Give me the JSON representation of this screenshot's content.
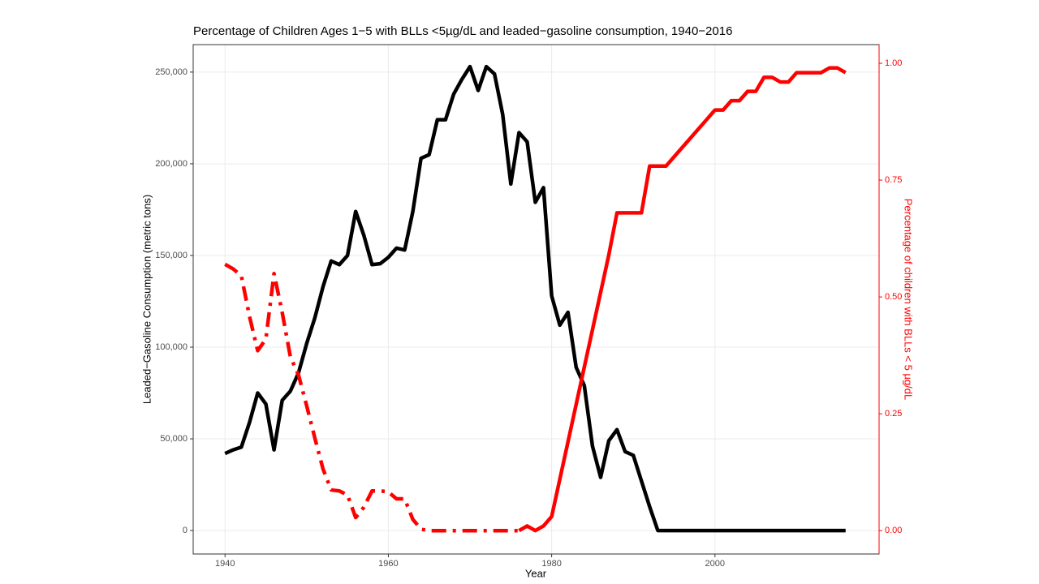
{
  "chart_data": {
    "type": "line",
    "title": "Percentage of Children Ages 1−5 with BLLs <5µg/dL and leaded−gasoline consumption, 1940−2016",
    "x_label": "Year",
    "y_label": "Leaded−Gasoline Consumption (metric tons)",
    "y2_label": "Percentage of children with BLLs < 5 µg/dL",
    "x": [
      1940,
      1941,
      1942,
      1943,
      1944,
      1945,
      1946,
      1947,
      1948,
      1949,
      1950,
      1951,
      1952,
      1953,
      1954,
      1955,
      1956,
      1957,
      1958,
      1959,
      1960,
      1961,
      1962,
      1963,
      1964,
      1965,
      1966,
      1967,
      1968,
      1969,
      1970,
      1971,
      1972,
      1973,
      1974,
      1975,
      1976,
      1977,
      1978,
      1979,
      1980,
      1981,
      1982,
      1983,
      1984,
      1985,
      1986,
      1987,
      1988,
      1989,
      1990,
      1991,
      1992,
      1993,
      1994,
      1995,
      1996,
      1997,
      1998,
      1999,
      2000,
      2001,
      2002,
      2003,
      2004,
      2005,
      2006,
      2007,
      2008,
      2009,
      2010,
      2011,
      2012,
      2013,
      2014,
      2015,
      2016
    ],
    "series": [
      {
        "color": "#000000",
        "axis": "y",
        "linestyle": "solid",
        "values": [
          42000,
          44000,
          45500,
          59000,
          75000,
          69000,
          44000,
          71000,
          76000,
          86000,
          102000,
          116000,
          133000,
          147000,
          145000,
          150000,
          174000,
          161000,
          145000,
          145500,
          149000,
          154000,
          153000,
          174000,
          203000,
          205000,
          224000,
          224000,
          238000,
          246000,
          253000,
          240000,
          253000,
          249000,
          227000,
          189000,
          217000,
          212000,
          179000,
          187000,
          128000,
          112000,
          119000,
          89000,
          79000,
          46000,
          29000,
          49000,
          55000,
          43000,
          41000,
          27000,
          13000,
          0,
          0,
          0,
          0,
          0,
          0,
          0,
          0,
          0,
          0,
          0,
          0,
          0,
          0,
          0,
          0,
          0,
          0,
          0,
          0,
          0,
          0,
          0,
          0
        ]
      },
      {
        "color": "#ff0000",
        "axis": "y2",
        "linestyle": "dashdot",
        "values": [
          0.57,
          0.56,
          0.545,
          0.458,
          0.385,
          0.41,
          0.55,
          0.467,
          0.372,
          0.333,
          0.267,
          0.198,
          0.132,
          0.087,
          0.085,
          0.076,
          0.028,
          0.05,
          0.085,
          0.085,
          0.083,
          0.068,
          0.068,
          0.024,
          0.003,
          0,
          0,
          0,
          0,
          0,
          0,
          0,
          0,
          0,
          0,
          0,
          0,
          null,
          null,
          null,
          null,
          null,
          null,
          null,
          null,
          null,
          null,
          null,
          null,
          null,
          null,
          null,
          null,
          null,
          null,
          null,
          null,
          null,
          null,
          null,
          null,
          null,
          null,
          null,
          null,
          null,
          null,
          null,
          null,
          null,
          null,
          null,
          null,
          null,
          null,
          null,
          null
        ]
      },
      {
        "color": "#ff0000",
        "axis": "y2",
        "linestyle": "solid",
        "values": [
          null,
          null,
          null,
          null,
          null,
          null,
          null,
          null,
          null,
          null,
          null,
          null,
          null,
          null,
          null,
          null,
          null,
          null,
          null,
          null,
          null,
          null,
          null,
          null,
          null,
          null,
          null,
          null,
          null,
          null,
          null,
          null,
          null,
          null,
          null,
          null,
          0,
          0.01,
          0,
          0.01,
          0.03,
          0.11,
          0.19,
          0.27,
          0.35,
          0.43,
          0.51,
          0.59,
          0.68,
          0.68,
          0.68,
          0.68,
          0.78,
          0.78,
          0.78,
          0.8,
          0.82,
          0.84,
          0.86,
          0.88,
          0.9,
          0.9,
          0.92,
          0.92,
          0.94,
          0.94,
          0.97,
          0.97,
          0.96,
          0.96,
          0.98,
          0.98,
          0.98,
          0.98,
          0.99,
          0.99,
          0.98
        ]
      }
    ],
    "xlim": [
      1936.1,
      2020.1
    ],
    "xticks": [
      1940,
      1960,
      1980,
      2000
    ],
    "ylim": [
      -12800,
      265000
    ],
    "yticks": [
      {
        "value": 0,
        "label": "0"
      },
      {
        "value": 50000,
        "label": "50,000"
      },
      {
        "value": 100000,
        "label": "100,000"
      },
      {
        "value": 150000,
        "label": "150,000"
      },
      {
        "value": 200000,
        "label": "200,000"
      },
      {
        "value": 250000,
        "label": "250,000"
      }
    ],
    "y2lim": [
      -0.05,
      1.04
    ],
    "y2ticks": [
      {
        "value": 0,
        "label": "0.00"
      },
      {
        "value": 0.25,
        "label": "0.25"
      },
      {
        "value": 0.5,
        "label": "0.50"
      },
      {
        "value": 0.75,
        "label": "0.75"
      },
      {
        "value": 1,
        "label": "1.00"
      }
    ],
    "y2_color": "#ff0000",
    "grid": true
  }
}
